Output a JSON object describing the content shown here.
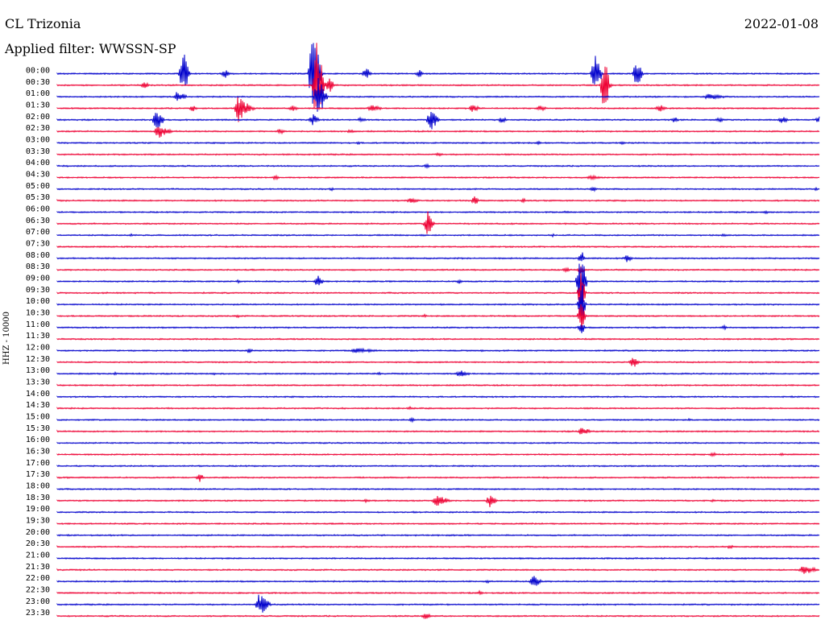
{
  "header": {
    "station": "CL Trizonia",
    "date": "2022-01-08",
    "filter": "Applied filter: WWSSN-SP"
  },
  "chart_data": {
    "type": "helicorder",
    "ylabel": "HHZ - 10000",
    "colors": [
      "#0000cc",
      "#ee0033"
    ],
    "rows": [
      {
        "time": "00:00",
        "events": [
          [
            0.165,
            30,
            0.8
          ],
          [
            0.335,
            60,
            1.2
          ],
          [
            0.705,
            25,
            1.0
          ],
          [
            0.76,
            18,
            0.8
          ],
          [
            0.22,
            6,
            0.6
          ],
          [
            0.405,
            8,
            0.8
          ],
          [
            0.475,
            5,
            0.6
          ]
        ]
      },
      {
        "time": "00:30",
        "events": [
          [
            0.34,
            58,
            1.0
          ],
          [
            0.357,
            10,
            0.6
          ],
          [
            0.115,
            5,
            0.4
          ],
          [
            0.718,
            40,
            0.6
          ],
          [
            0.72,
            8,
            0.8
          ]
        ]
      },
      {
        "time": "01:00",
        "events": [
          [
            0.342,
            25,
            1.2
          ],
          [
            0.158,
            8,
            1.2
          ],
          [
            0.853,
            4,
            3.0
          ]
        ]
      },
      {
        "time": "01:30",
        "events": [
          [
            0.238,
            18,
            1.0
          ],
          [
            0.245,
            8,
            1.5
          ],
          [
            0.178,
            4,
            0.6
          ],
          [
            0.412,
            5,
            1.5
          ],
          [
            0.545,
            5,
            1.0
          ],
          [
            0.633,
            4,
            1.0
          ],
          [
            0.79,
            5,
            1.0
          ],
          [
            0.308,
            4,
            1.0
          ]
        ]
      },
      {
        "time": "02:00",
        "events": [
          [
            0.13,
            16,
            1.0
          ],
          [
            0.335,
            8,
            0.8
          ],
          [
            0.49,
            16,
            1.0
          ],
          [
            0.583,
            4,
            0.8
          ],
          [
            0.95,
            5,
            1.0
          ],
          [
            1.0,
            7,
            0.8
          ],
          [
            0.867,
            4,
            0.8
          ],
          [
            0.81,
            4,
            0.6
          ],
          [
            0.398,
            3,
            0.8
          ]
        ]
      },
      {
        "time": "02:30",
        "events": [
          [
            0.133,
            12,
            0.8
          ],
          [
            0.14,
            5,
            1.2
          ],
          [
            0.293,
            4,
            0.5
          ],
          [
            0.385,
            3,
            0.5
          ]
        ]
      },
      {
        "time": "03:00",
        "events": [
          [
            0.395,
            2,
            0.3
          ],
          [
            0.632,
            2,
            0.3
          ],
          [
            0.742,
            2,
            0.3
          ]
        ]
      },
      {
        "time": "03:30",
        "events": [
          [
            0.5,
            2,
            1.0
          ]
        ]
      },
      {
        "time": "04:00",
        "events": [
          [
            0.485,
            4,
            0.3
          ]
        ]
      },
      {
        "time": "04:30",
        "events": [
          [
            0.287,
            4,
            0.3
          ],
          [
            0.7,
            3,
            1.5
          ]
        ]
      },
      {
        "time": "05:00",
        "events": [
          [
            0.703,
            3,
            0.5
          ],
          [
            0.36,
            2,
            0.3
          ],
          [
            0.995,
            2,
            0.3
          ]
        ]
      },
      {
        "time": "05:30",
        "events": [
          [
            0.548,
            7,
            0.4
          ],
          [
            0.463,
            3,
            1.5
          ],
          [
            0.612,
            3,
            0.3
          ]
        ]
      },
      {
        "time": "06:00",
        "events": [
          [
            0.668,
            2,
            0.3
          ],
          [
            0.93,
            2,
            0.3
          ]
        ]
      },
      {
        "time": "06:30",
        "events": [
          [
            0.486,
            16,
            0.8
          ]
        ]
      },
      {
        "time": "07:00",
        "events": [
          [
            0.097,
            2,
            0.3
          ],
          [
            0.48,
            2,
            0.3
          ],
          [
            0.875,
            3,
            0.3
          ],
          [
            0.65,
            2,
            0.3
          ]
        ]
      },
      {
        "time": "07:30",
        "events": []
      },
      {
        "time": "08:00",
        "events": [
          [
            0.748,
            6,
            0.6
          ],
          [
            0.688,
            10,
            0.3
          ]
        ]
      },
      {
        "time": "08:30",
        "events": [
          [
            0.668,
            4,
            0.3
          ],
          [
            0.688,
            8,
            0.3
          ]
        ]
      },
      {
        "time": "09:00",
        "events": [
          [
            0.686,
            42,
            0.8
          ],
          [
            0.342,
            9,
            0.6
          ],
          [
            0.528,
            3,
            0.3
          ],
          [
            0.238,
            2,
            0.3
          ]
        ]
      },
      {
        "time": "09:30",
        "events": [
          [
            0.688,
            30,
            0.4
          ]
        ]
      },
      {
        "time": "10:00",
        "events": [
          [
            0.688,
            30,
            0.4
          ]
        ]
      },
      {
        "time": "10:30",
        "events": [
          [
            0.688,
            22,
            0.4
          ],
          [
            0.237,
            2,
            0.3
          ],
          [
            0.482,
            2,
            0.3
          ]
        ]
      },
      {
        "time": "11:00",
        "events": [
          [
            0.688,
            10,
            0.3
          ],
          [
            0.875,
            3,
            0.3
          ]
        ]
      },
      {
        "time": "11:30",
        "events": []
      },
      {
        "time": "12:00",
        "events": [
          [
            0.252,
            4,
            0.4
          ],
          [
            0.39,
            3,
            4.0
          ],
          [
            0.558,
            2,
            0.3
          ]
        ]
      },
      {
        "time": "12:30",
        "events": [
          [
            0.755,
            8,
            0.8
          ]
        ]
      },
      {
        "time": "13:00",
        "events": [
          [
            0.528,
            5,
            1.5
          ],
          [
            0.076,
            2,
            0.3
          ],
          [
            0.205,
            2,
            0.3
          ],
          [
            0.422,
            2,
            0.3
          ]
        ]
      },
      {
        "time": "13:30",
        "events": []
      },
      {
        "time": "14:00",
        "events": []
      },
      {
        "time": "14:30",
        "events": [
          [
            0.463,
            2,
            0.3
          ]
        ]
      },
      {
        "time": "15:00",
        "events": [
          [
            0.466,
            3,
            0.3
          ],
          [
            0.83,
            2,
            0.3
          ]
        ]
      },
      {
        "time": "15:30",
        "events": [
          [
            0.688,
            6,
            1.2
          ]
        ]
      },
      {
        "time": "16:00",
        "events": []
      },
      {
        "time": "16:30",
        "events": [
          [
            0.86,
            3,
            0.5
          ],
          [
            0.95,
            2,
            0.3
          ]
        ]
      },
      {
        "time": "17:00",
        "events": []
      },
      {
        "time": "17:30",
        "events": [
          [
            0.187,
            6,
            0.5
          ]
        ]
      },
      {
        "time": "18:00",
        "events": []
      },
      {
        "time": "18:30",
        "events": [
          [
            0.497,
            7,
            2.0
          ],
          [
            0.568,
            9,
            0.8
          ],
          [
            0.405,
            2,
            0.6
          ],
          [
            0.86,
            2,
            0.3
          ]
        ]
      },
      {
        "time": "19:00",
        "events": [
          [
            0.47,
            2,
            0.4
          ]
        ]
      },
      {
        "time": "19:30",
        "events": []
      },
      {
        "time": "20:00",
        "events": []
      },
      {
        "time": "20:30",
        "events": [
          [
            0.883,
            3,
            0.4
          ]
        ]
      },
      {
        "time": "21:00",
        "events": []
      },
      {
        "time": "21:30",
        "events": [
          [
            0.978,
            6,
            2.5
          ]
        ]
      },
      {
        "time": "22:00",
        "events": [
          [
            0.625,
            8,
            1.2
          ],
          [
            0.565,
            2,
            0.3
          ]
        ]
      },
      {
        "time": "22:30",
        "events": [
          [
            0.555,
            3,
            0.3
          ]
        ]
      },
      {
        "time": "23:00",
        "events": [
          [
            0.265,
            14,
            1.5
          ]
        ]
      },
      {
        "time": "23:30",
        "events": [
          [
            0.483,
            4,
            0.8
          ]
        ]
      }
    ]
  }
}
